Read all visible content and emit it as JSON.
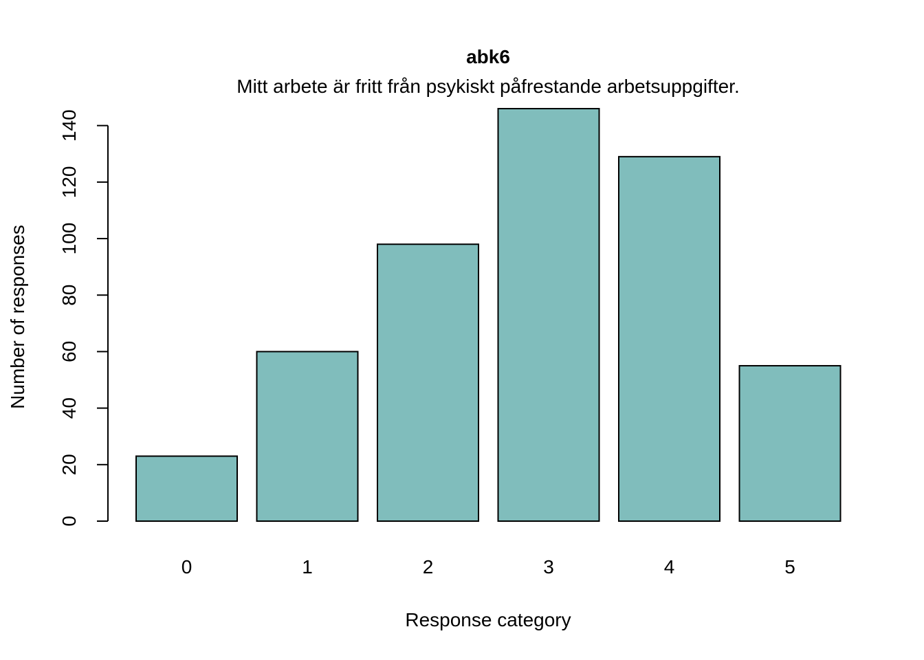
{
  "chart_data": {
    "type": "bar",
    "title": "abk6",
    "subtitle": "Mitt arbete är fritt från psykiskt påfrestande arbetsuppgifter.",
    "xlabel": "Response category",
    "ylabel": "Number of responses",
    "categories": [
      "0",
      "1",
      "2",
      "3",
      "4",
      "5"
    ],
    "values": [
      23,
      60,
      98,
      146,
      129,
      55
    ],
    "ylim": [
      0,
      146
    ],
    "yticks": [
      0,
      20,
      40,
      60,
      80,
      100,
      120,
      140
    ],
    "bar_color": "#80BDBC",
    "grid": false,
    "legend": "none"
  }
}
